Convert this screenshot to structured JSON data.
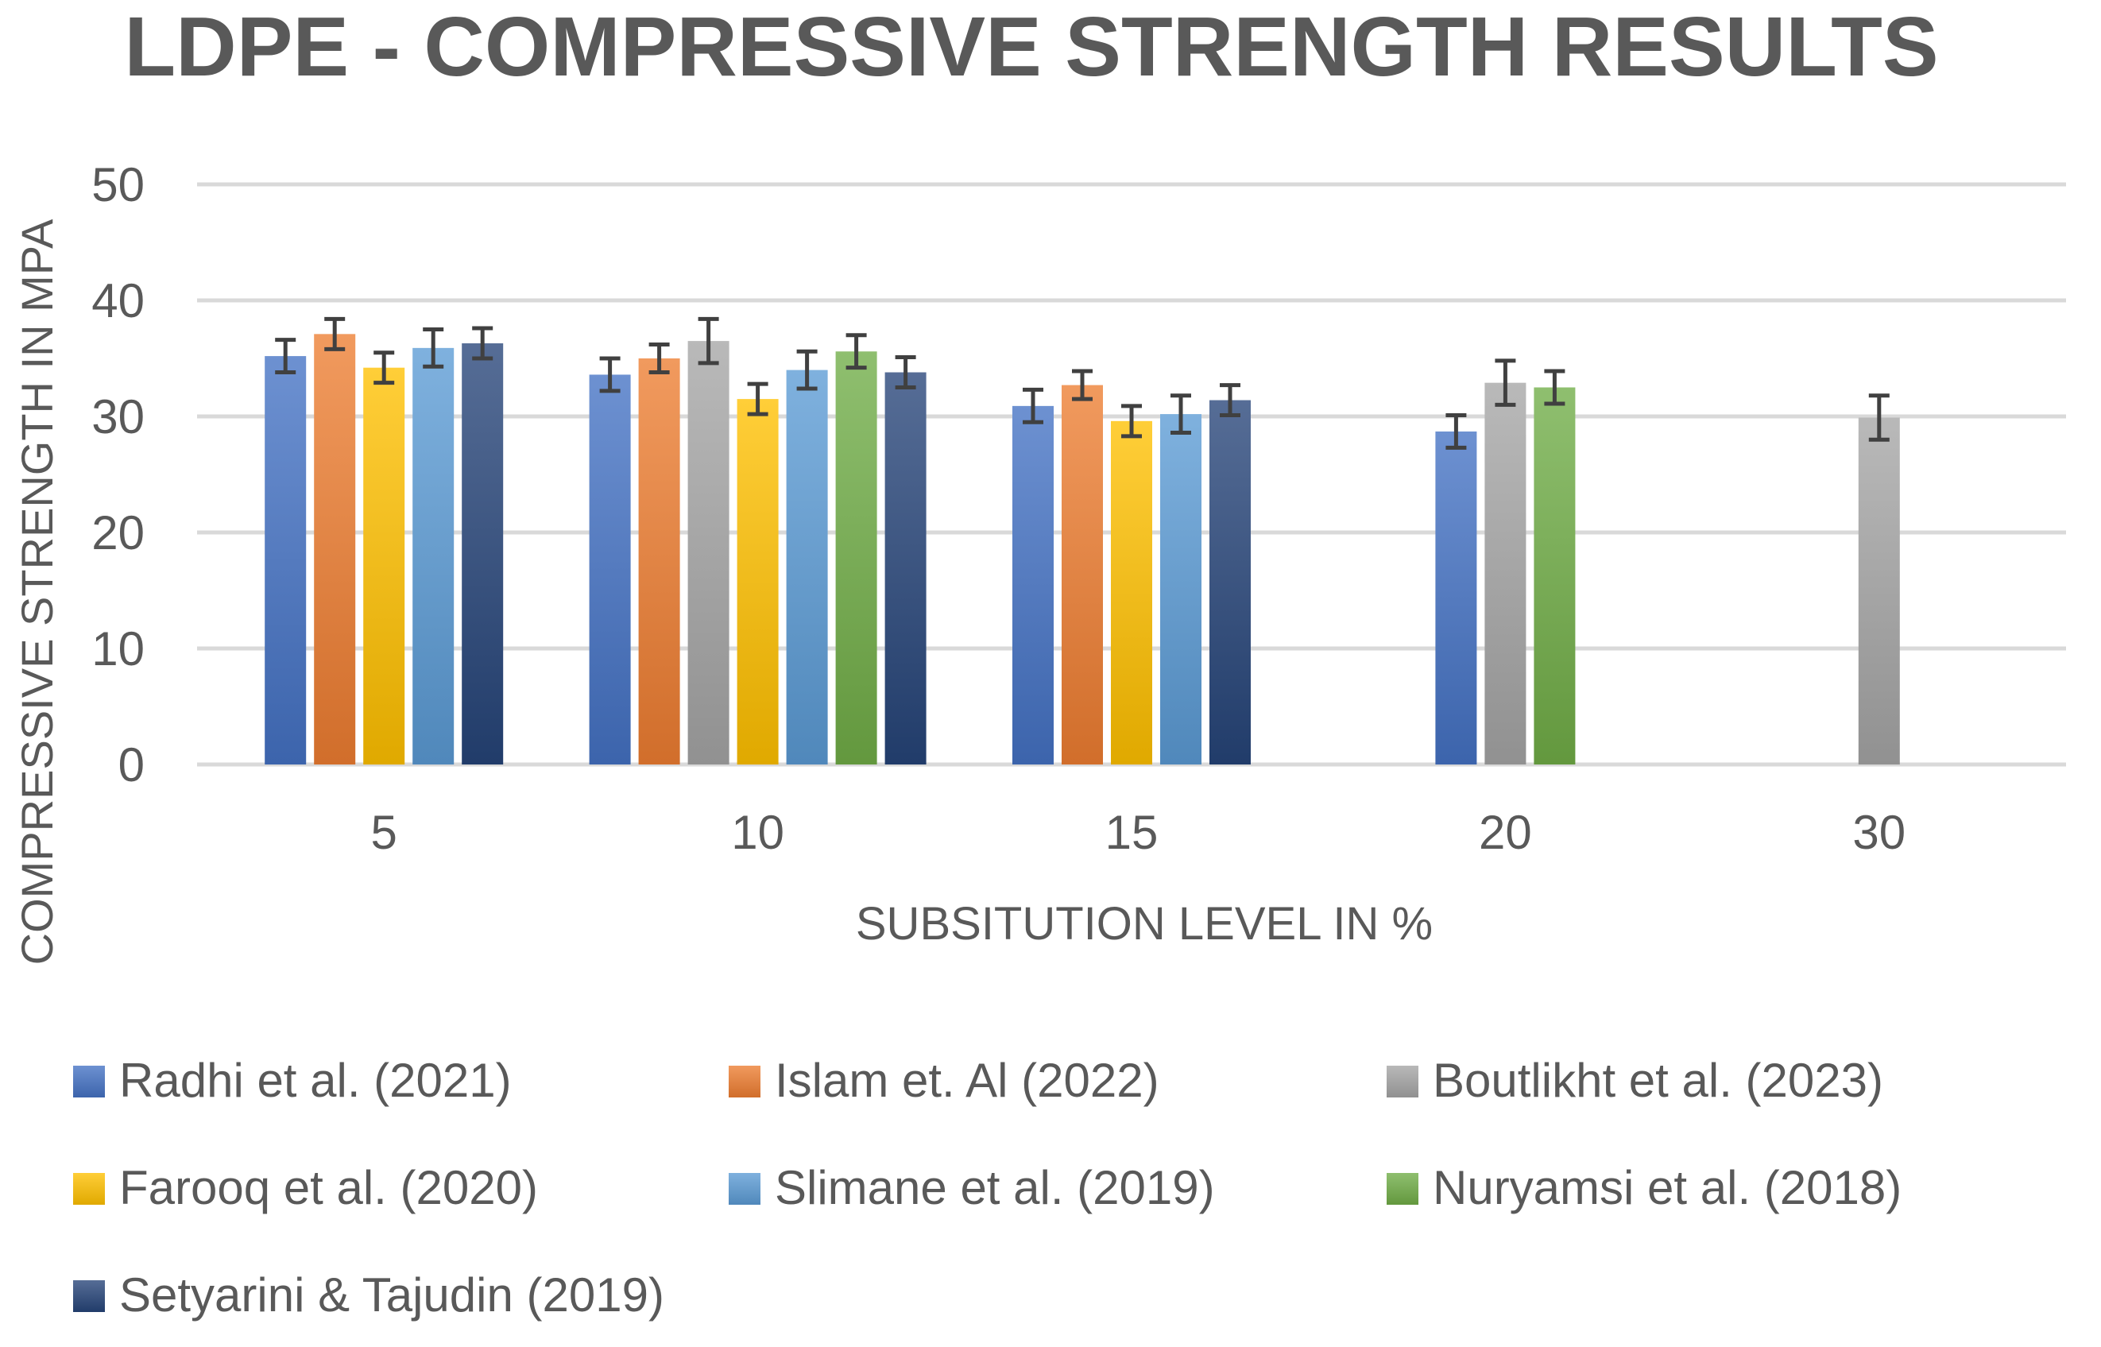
{
  "chart_data": {
    "type": "bar",
    "title": "LDPE - COMPRESSIVE STRENGTH RESULTS",
    "xlabel": "SUBSITUTION LEVEL IN %",
    "ylabel": "COMPRESSIVE STRENGTH IN MPA",
    "ylim": [
      0,
      50
    ],
    "yticks": [
      0,
      10,
      20,
      30,
      40,
      50
    ],
    "grid": true,
    "legend_position": "bottom",
    "categories": [
      "5",
      "10",
      "15",
      "20",
      "30"
    ],
    "series": [
      {
        "name": "Radhi et al. (2021)",
        "color": "#4472C4",
        "values": [
          35.2,
          33.6,
          30.9,
          28.7,
          null
        ],
        "errors": [
          1.4,
          1.4,
          1.4,
          1.4,
          null
        ]
      },
      {
        "name": "Islam et. Al (2022)",
        "color": "#ED7D31",
        "values": [
          37.1,
          35.0,
          32.7,
          null,
          null
        ],
        "errors": [
          1.3,
          1.2,
          1.2,
          null,
          null
        ]
      },
      {
        "name": "Boutlikht et al. (2023)",
        "color": "#A5A5A5",
        "values": [
          null,
          36.5,
          null,
          32.9,
          29.9
        ],
        "errors": [
          null,
          1.9,
          null,
          1.9,
          1.9
        ]
      },
      {
        "name": "Farooq et al. (2020)",
        "color": "#FFC000",
        "values": [
          34.2,
          31.5,
          29.6,
          null,
          null
        ],
        "errors": [
          1.3,
          1.3,
          1.3,
          null,
          null
        ]
      },
      {
        "name": "Slimane et al. (2019)",
        "color": "#5B9BD5",
        "values": [
          35.9,
          34.0,
          30.2,
          null,
          null
        ],
        "errors": [
          1.6,
          1.6,
          1.6,
          null,
          null
        ]
      },
      {
        "name": "Nuryamsi et al. (2018)",
        "color": "#70AD47",
        "values": [
          null,
          35.6,
          null,
          32.5,
          null
        ],
        "errors": [
          null,
          1.4,
          null,
          1.4,
          null
        ]
      },
      {
        "name": "Setyarini & Tajudin (2019)",
        "color": "#264478",
        "values": [
          36.3,
          33.8,
          31.4,
          null,
          null
        ],
        "errors": [
          1.3,
          1.3,
          1.3,
          null,
          null
        ]
      }
    ]
  }
}
